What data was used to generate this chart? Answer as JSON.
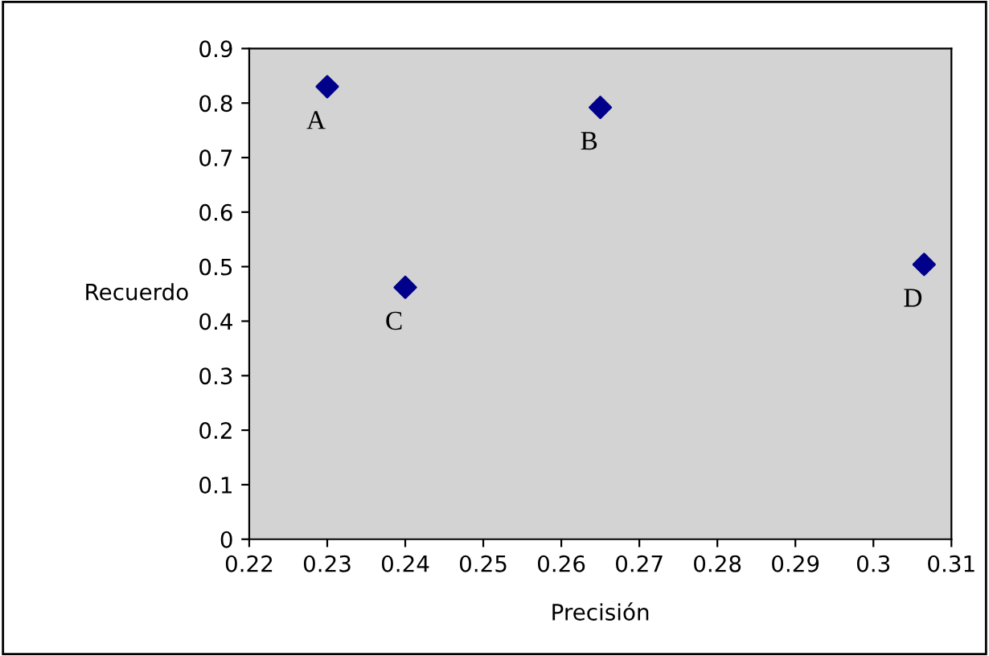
{
  "chart_data": {
    "type": "scatter",
    "xlabel": "Precisión",
    "ylabel": "Recuerdo",
    "x": [
      0.23,
      0.265,
      0.24,
      0.3065
    ],
    "series": [
      {
        "color": "#00008b",
        "values": [
          0.83,
          0.792,
          0.462,
          0.504
        ]
      }
    ],
    "marker": "diamond",
    "grid": false,
    "legend": false,
    "xlim": [
      0.22,
      0.31
    ],
    "xticks": [
      0.22,
      0.23,
      0.24,
      0.25,
      0.26,
      0.27,
      0.28,
      0.29,
      0.3,
      0.31
    ],
    "ylim": [
      0,
      0.9
    ],
    "yticks": [
      0,
      0.1,
      0.2,
      0.3,
      0.4,
      0.5,
      0.6,
      0.7,
      0.8,
      0.9
    ],
    "annotations": [
      {
        "text": "A",
        "x": 0.23,
        "y": 0.83
      },
      {
        "text": "B",
        "x": 0.265,
        "y": 0.792
      },
      {
        "text": "C",
        "x": 0.24,
        "y": 0.462
      },
      {
        "text": "D",
        "x": 0.3065,
        "y": 0.504
      }
    ]
  }
}
